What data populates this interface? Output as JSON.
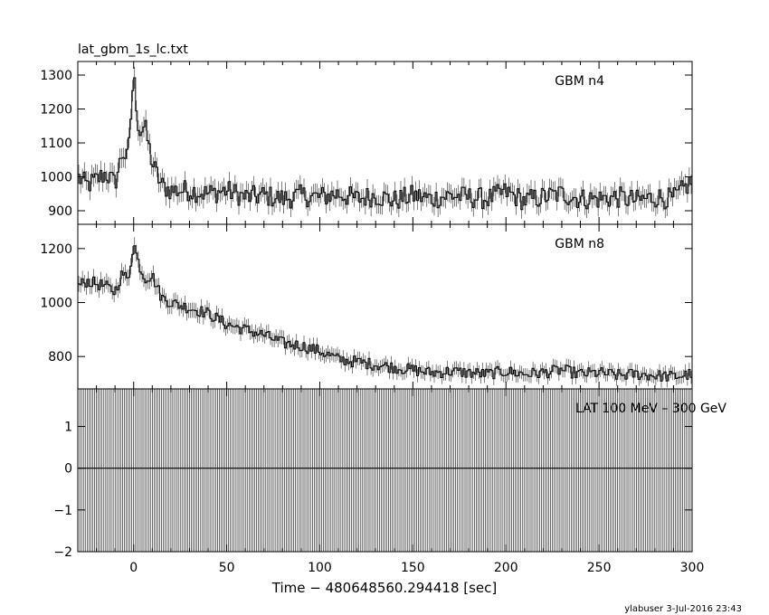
{
  "title": "lat_gbm_1s_lc.txt",
  "footer": "ylabuser  3-Jul-2016 23:43",
  "chart_data": [
    {
      "type": "line",
      "panel_label": "GBM n4",
      "xlim": [
        -30,
        300
      ],
      "ylim": [
        860,
        1340
      ],
      "yticks": [
        900,
        1000,
        1100,
        1200,
        1300
      ],
      "ytick_labels": [
        "900",
        "1000",
        "1100",
        "1200",
        "1300"
      ],
      "grid": false,
      "series": [
        {
          "x": [
            -30,
            -25,
            -20,
            -15,
            -10,
            -6,
            -3,
            0,
            3,
            6,
            10,
            15,
            20,
            30,
            40,
            50,
            60,
            70,
            80,
            90,
            100,
            110,
            120,
            130,
            140,
            150,
            160,
            170,
            180,
            190,
            200,
            210,
            220,
            230,
            240,
            250,
            260,
            270,
            280,
            290,
            295,
            300
          ],
          "values": [
            1000,
            975,
            990,
            1010,
            980,
            1075,
            1050,
            1300,
            1130,
            1150,
            1040,
            975,
            960,
            960,
            950,
            960,
            940,
            945,
            935,
            945,
            940,
            950,
            935,
            945,
            930,
            945,
            935,
            945,
            940,
            935,
            955,
            930,
            940,
            950,
            935,
            935,
            940,
            930,
            940,
            935,
            960,
            990
          ]
        }
      ]
    },
    {
      "type": "line",
      "panel_label": "GBM n8",
      "xlim": [
        -30,
        300
      ],
      "ylim": [
        680,
        1290
      ],
      "yticks": [
        800,
        1000,
        1200
      ],
      "ytick_labels": [
        "800",
        "1000",
        "1200"
      ],
      "grid": false,
      "series": [
        {
          "x": [
            -30,
            -25,
            -20,
            -15,
            -10,
            -6,
            -3,
            0,
            3,
            6,
            10,
            15,
            20,
            30,
            40,
            50,
            60,
            70,
            80,
            90,
            100,
            110,
            120,
            130,
            140,
            150,
            160,
            170,
            180,
            190,
            200,
            210,
            220,
            230,
            240,
            250,
            260,
            270,
            280,
            290,
            300
          ],
          "values": [
            1060,
            1080,
            1070,
            1060,
            1040,
            1110,
            1080,
            1220,
            1140,
            1090,
            1100,
            1020,
            1000,
            980,
            960,
            920,
            900,
            880,
            850,
            840,
            820,
            790,
            780,
            770,
            760,
            750,
            740,
            745,
            740,
            735,
            745,
            735,
            740,
            750,
            735,
            740,
            730,
            735,
            730,
            725,
            735
          ]
        }
      ]
    },
    {
      "type": "line",
      "panel_label": "LAT 100 MeV – 300 GeV",
      "xlim": [
        -30,
        300
      ],
      "ylim": [
        -2,
        1.9
      ],
      "yticks": [
        -2,
        -1,
        0,
        1
      ],
      "ytick_labels": [
        "−2",
        "−1",
        "0",
        "1"
      ],
      "xticks": [
        0,
        50,
        100,
        150,
        200,
        250,
        300
      ],
      "xtick_labels": [
        "0",
        "50",
        "100",
        "150",
        "200",
        "250",
        "300"
      ],
      "xlabel": "Time − 480648560.294418 [sec]",
      "grid": false,
      "series": [
        {
          "x": [
            -30,
            300
          ],
          "values": [
            0,
            0
          ]
        }
      ]
    }
  ]
}
